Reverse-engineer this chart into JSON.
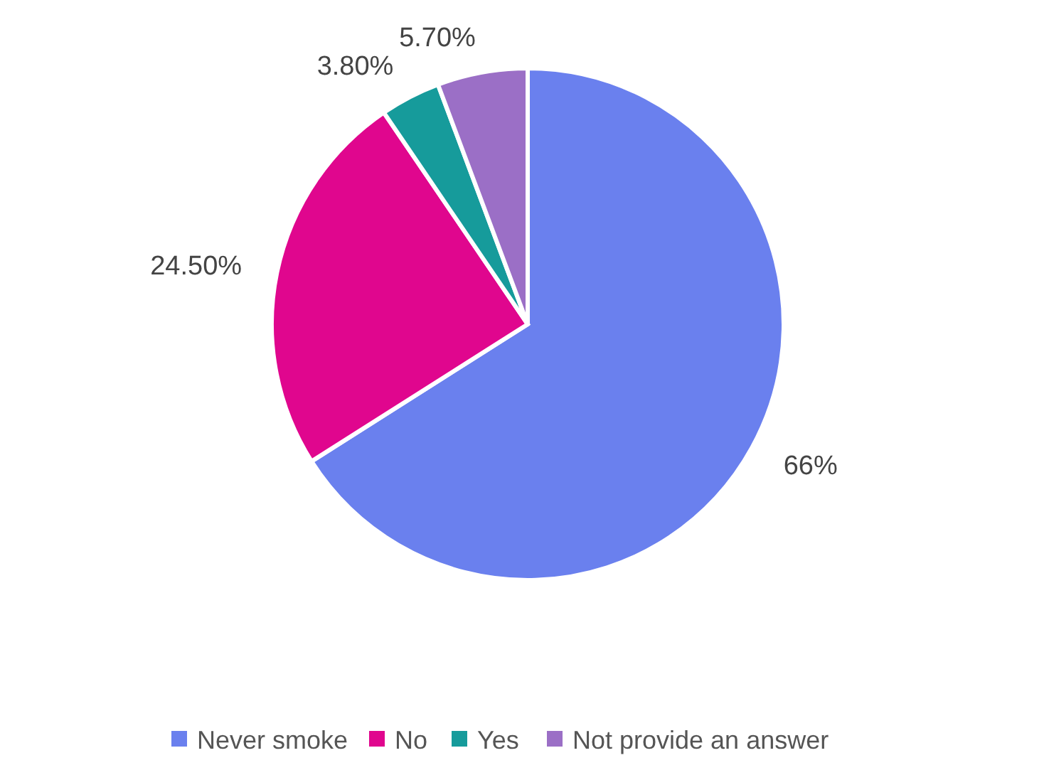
{
  "chart_data": {
    "type": "pie",
    "categories": [
      "Never smoke",
      "No",
      "Yes",
      "Not provide an answer"
    ],
    "values": [
      66,
      24.5,
      3.8,
      5.7
    ],
    "value_labels": [
      "66%",
      "24.50%",
      "3.80%",
      "5.70%"
    ],
    "colors": [
      "#6a80ee",
      "#e0068e",
      "#169b9b",
      "#9b6fc6"
    ],
    "legend": "bottom"
  }
}
